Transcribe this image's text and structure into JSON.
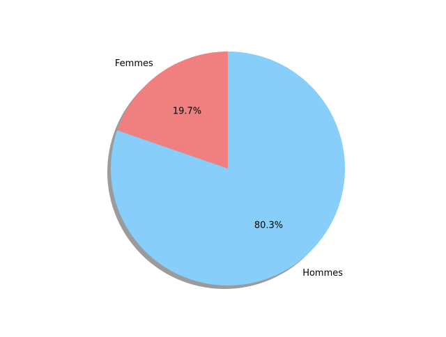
{
  "chart_data": {
    "type": "pie",
    "title": "",
    "slices": [
      {
        "label": "Hommes",
        "value": 80.3,
        "pct_label": "80.3%",
        "color": "#87cefa"
      },
      {
        "label": "Femmes",
        "value": 19.7,
        "pct_label": "19.7%",
        "color": "#f08080"
      }
    ],
    "shadow": true
  }
}
